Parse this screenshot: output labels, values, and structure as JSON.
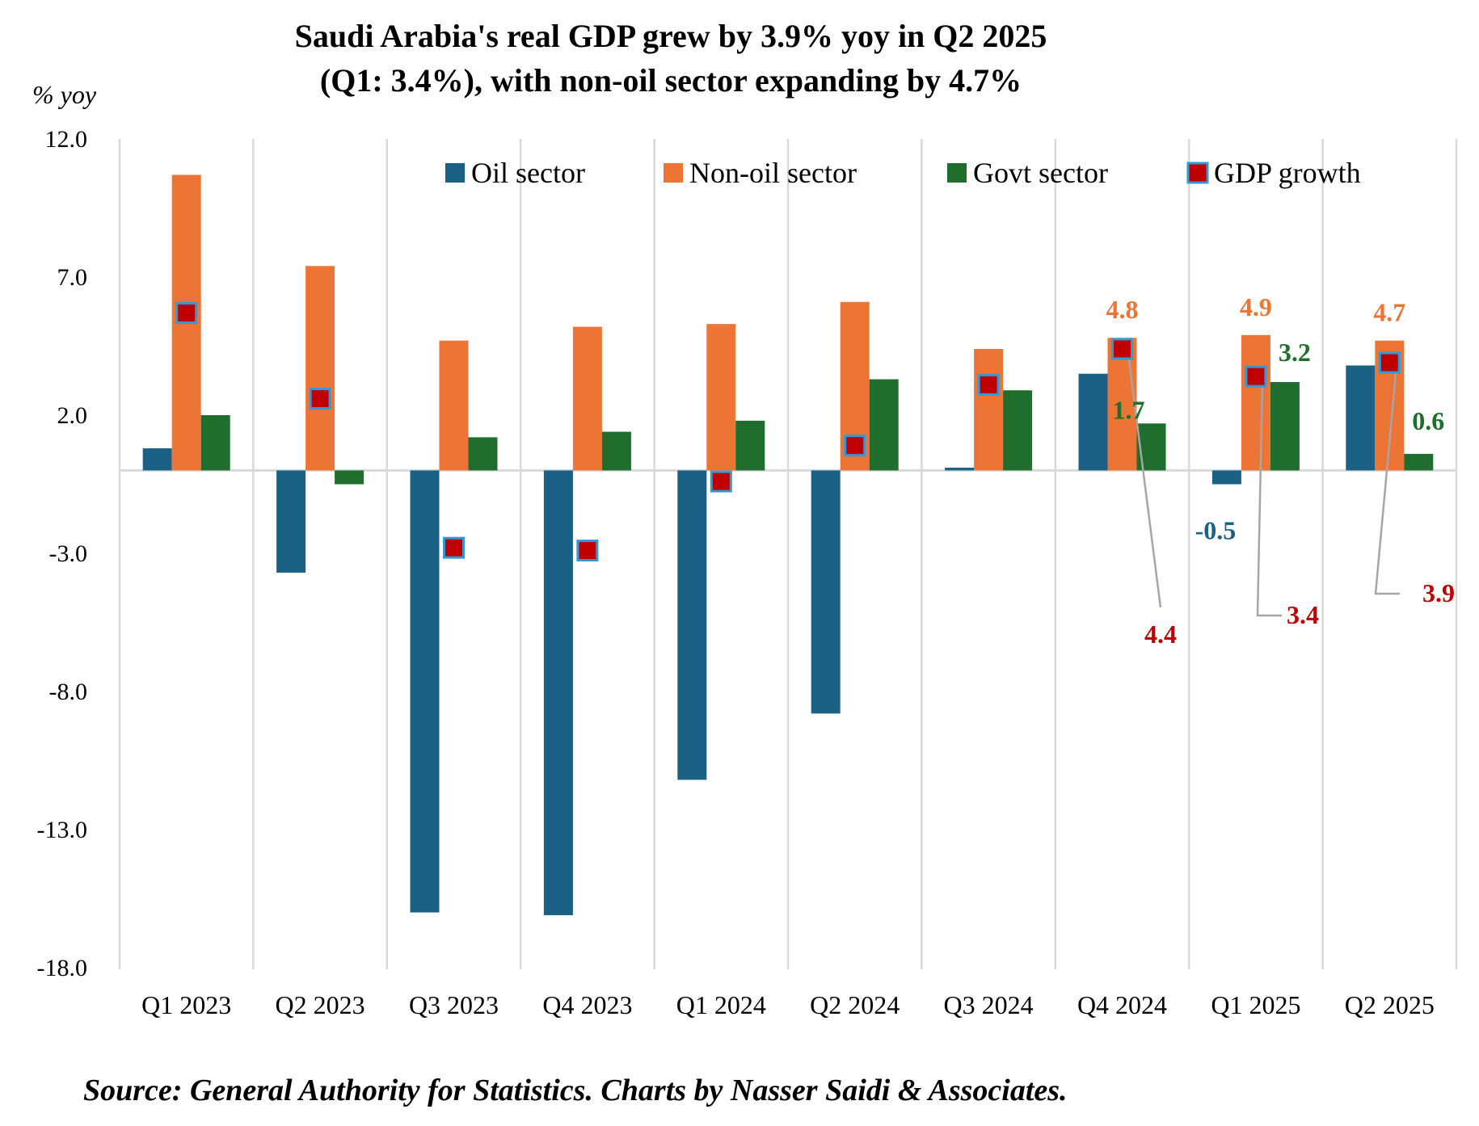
{
  "chart_data": {
    "type": "bar",
    "title_lines": [
      "Saudi Arabia's real GDP grew by 3.9% yoy in Q2 2025",
      "(Q1: 3.4%), with non-oil sector expanding by 4.7%"
    ],
    "ylabel": "% yoy",
    "ylim": [
      -18,
      12
    ],
    "yticks": [
      12,
      7,
      2,
      -3,
      -8,
      -13,
      -18
    ],
    "ytick_labels": [
      "12.0",
      "7.0",
      "2.0",
      "-3.0",
      "-8.0",
      "-13.0",
      "-18.0"
    ],
    "categories": [
      "Q1 2023",
      "Q2 2023",
      "Q3 2023",
      "Q4 2023",
      "Q1 2024",
      "Q2 2024",
      "Q3 2024",
      "Q4 2024",
      "Q1 2025",
      "Q2 2025"
    ],
    "grid": "vertical",
    "legend_position": "top-right",
    "series": [
      {
        "name": "Oil sector",
        "kind": "bar",
        "color": "#1B6185",
        "values": [
          0.8,
          -3.7,
          -16.0,
          -16.1,
          -11.2,
          -8.8,
          0.1,
          3.5,
          -0.5,
          3.8
        ]
      },
      {
        "name": "Non-oil sector",
        "kind": "bar",
        "color": "#EC7535",
        "values": [
          10.7,
          7.4,
          4.7,
          5.2,
          5.3,
          6.1,
          4.4,
          4.8,
          4.9,
          4.7
        ]
      },
      {
        "name": "Govt sector",
        "kind": "bar",
        "color": "#1F6E2D",
        "values": [
          2.0,
          -0.5,
          1.2,
          1.4,
          1.8,
          3.3,
          2.9,
          1.7,
          3.2,
          0.6
        ]
      },
      {
        "name": "GDP growth",
        "kind": "marker",
        "color": "#C00000",
        "edge_color": "#2E9BD6",
        "values": [
          5.7,
          2.6,
          -2.8,
          -2.9,
          -0.4,
          0.9,
          3.1,
          4.4,
          3.4,
          3.9
        ]
      }
    ],
    "data_labels": [
      {
        "series": "Non-oil sector",
        "index": 7,
        "text": "4.8",
        "color": "#EC7535"
      },
      {
        "series": "Non-oil sector",
        "index": 8,
        "text": "4.9",
        "color": "#EC7535"
      },
      {
        "series": "Non-oil sector",
        "index": 9,
        "text": "4.7",
        "color": "#EC7535"
      },
      {
        "series": "Govt sector",
        "index": 7,
        "text": "1.7",
        "color": "#1F6E2D"
      },
      {
        "series": "Govt sector",
        "index": 8,
        "text": "3.2",
        "color": "#1F6E2D"
      },
      {
        "series": "Govt sector",
        "index": 9,
        "text": "0.6",
        "color": "#1F6E2D"
      },
      {
        "series": "Oil sector",
        "index": 8,
        "text": "-0.5",
        "color": "#1B6185"
      },
      {
        "series": "GDP growth",
        "index": 7,
        "text": "4.4",
        "color": "#C00000"
      },
      {
        "series": "GDP growth",
        "index": 8,
        "text": "3.4",
        "color": "#C00000"
      },
      {
        "series": "GDP growth",
        "index": 9,
        "text": "3.9",
        "color": "#C00000"
      }
    ],
    "source": "Source: General Authority for Statistics. Charts by Nasser Saidi & Associates."
  }
}
